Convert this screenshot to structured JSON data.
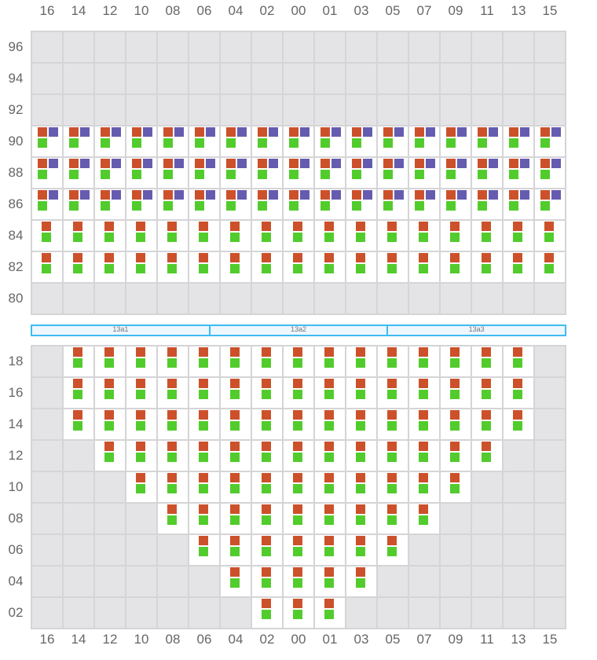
{
  "columns": [
    "16",
    "14",
    "12",
    "10",
    "08",
    "06",
    "04",
    "02",
    "00",
    "01",
    "03",
    "05",
    "07",
    "09",
    "11",
    "13",
    "15"
  ],
  "colors": {
    "orange": "#cc512b",
    "purple": "#655cb0",
    "green": "#52cc2c",
    "empty": "#e4e4e6",
    "bar_border": "#3cbdf0"
  },
  "top_rows": [
    {
      "label": "96",
      "from": null,
      "to": null,
      "slots": ""
    },
    {
      "label": "94",
      "from": null,
      "to": null,
      "slots": ""
    },
    {
      "label": "92",
      "from": null,
      "to": null,
      "slots": ""
    },
    {
      "label": "90",
      "from": "16",
      "to": "15",
      "slots": "orange,purple,green"
    },
    {
      "label": "88",
      "from": "16",
      "to": "15",
      "slots": "orange,purple,green"
    },
    {
      "label": "86",
      "from": "16",
      "to": "15",
      "slots": "orange,purple,green"
    },
    {
      "label": "84",
      "from": "16",
      "to": "15",
      "slots": "orange,green"
    },
    {
      "label": "82",
      "from": "16",
      "to": "15",
      "slots": "orange,green"
    },
    {
      "label": "80",
      "from": null,
      "to": null,
      "slots": ""
    }
  ],
  "segments": [
    "13a1",
    "13a2",
    "13a3"
  ],
  "bottom_rows": [
    {
      "label": "18",
      "from": "14",
      "to": "13",
      "slots": "orange,green"
    },
    {
      "label": "16",
      "from": "14",
      "to": "13",
      "slots": "orange,green"
    },
    {
      "label": "14",
      "from": "14",
      "to": "13",
      "slots": "orange,green"
    },
    {
      "label": "12",
      "from": "12",
      "to": "11",
      "slots": "orange,green"
    },
    {
      "label": "10",
      "from": "10",
      "to": "09",
      "slots": "orange,green"
    },
    {
      "label": "08",
      "from": "08",
      "to": "07",
      "slots": "orange,green"
    },
    {
      "label": "06",
      "from": "06",
      "to": "05",
      "slots": "orange,green"
    },
    {
      "label": "04",
      "from": "04",
      "to": "03",
      "slots": "orange,green"
    },
    {
      "label": "02",
      "from": "02",
      "to": "01",
      "slots": "orange,green"
    }
  ]
}
